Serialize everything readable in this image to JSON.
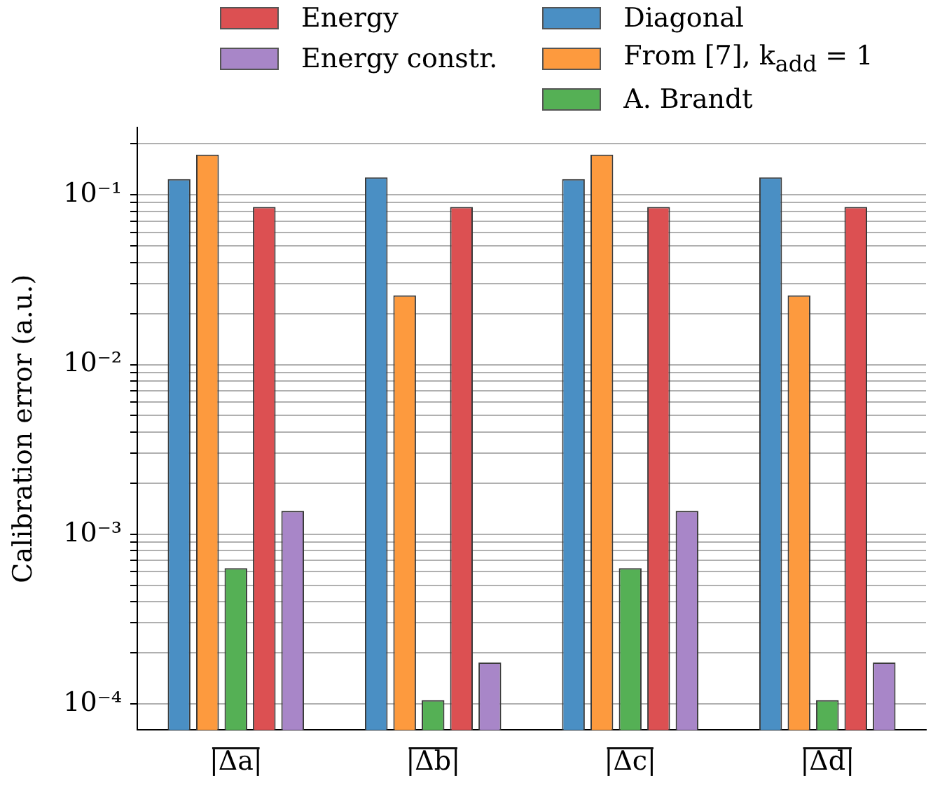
{
  "chart_data": {
    "type": "bar",
    "ylabel": "Calibration error (a.u.)",
    "categories": [
      "|Δa|",
      "|Δb|",
      "|Δc|",
      "|Δd|"
    ],
    "series": [
      {
        "name": "Diagonal",
        "color": "#4a8fc4",
        "values": [
          0.124,
          0.127,
          0.124,
          0.127
        ]
      },
      {
        "name": "From [7], k$_{add}$ = 1",
        "color": "#fd9a3e",
        "values": [
          0.173,
          0.0256,
          0.173,
          0.0256
        ]
      },
      {
        "name": "A. Brandt",
        "color": "#55b055",
        "values": [
          0.00063,
          0.000105,
          0.00063,
          0.000105
        ]
      },
      {
        "name": "Energy",
        "color": "#dc5052",
        "values": [
          0.085,
          0.085,
          0.085,
          0.085
        ]
      },
      {
        "name": "Energy constr.",
        "color": "#a886c8",
        "values": [
          0.00137,
          0.000175,
          0.00137,
          0.000175
        ]
      }
    ],
    "log": "y",
    "ylim": [
      7.2e-05,
      0.25
    ],
    "yticks": [
      {
        "value": 0.0001,
        "label": "10⁻⁴"
      },
      {
        "value": 0.0002,
        "label": null
      },
      {
        "value": 0.0003,
        "label": null
      },
      {
        "value": 0.0004,
        "label": null
      },
      {
        "value": 0.0005,
        "label": null
      },
      {
        "value": 0.0006,
        "label": null
      },
      {
        "value": 0.0007,
        "label": null
      },
      {
        "value": 0.0008,
        "label": null
      },
      {
        "value": 0.0009,
        "label": null
      },
      {
        "value": 0.001,
        "label": "10⁻³"
      },
      {
        "value": 0.002,
        "label": null
      },
      {
        "value": 0.003,
        "label": null
      },
      {
        "value": 0.004,
        "label": null
      },
      {
        "value": 0.005,
        "label": null
      },
      {
        "value": 0.006,
        "label": null
      },
      {
        "value": 0.007,
        "label": null
      },
      {
        "value": 0.008,
        "label": null
      },
      {
        "value": 0.009,
        "label": null
      },
      {
        "value": 0.01,
        "label": "10⁻²"
      },
      {
        "value": 0.02,
        "label": null
      },
      {
        "value": 0.03,
        "label": null
      },
      {
        "value": 0.04,
        "label": null
      },
      {
        "value": 0.05,
        "label": null
      },
      {
        "value": 0.06,
        "label": null
      },
      {
        "value": 0.07,
        "label": null
      },
      {
        "value": 0.08,
        "label": null
      },
      {
        "value": 0.09,
        "label": null
      },
      {
        "value": 0.1,
        "label": "10⁻¹"
      },
      {
        "value": 0.2,
        "label": null
      }
    ],
    "grid": "y",
    "legend": "top"
  }
}
